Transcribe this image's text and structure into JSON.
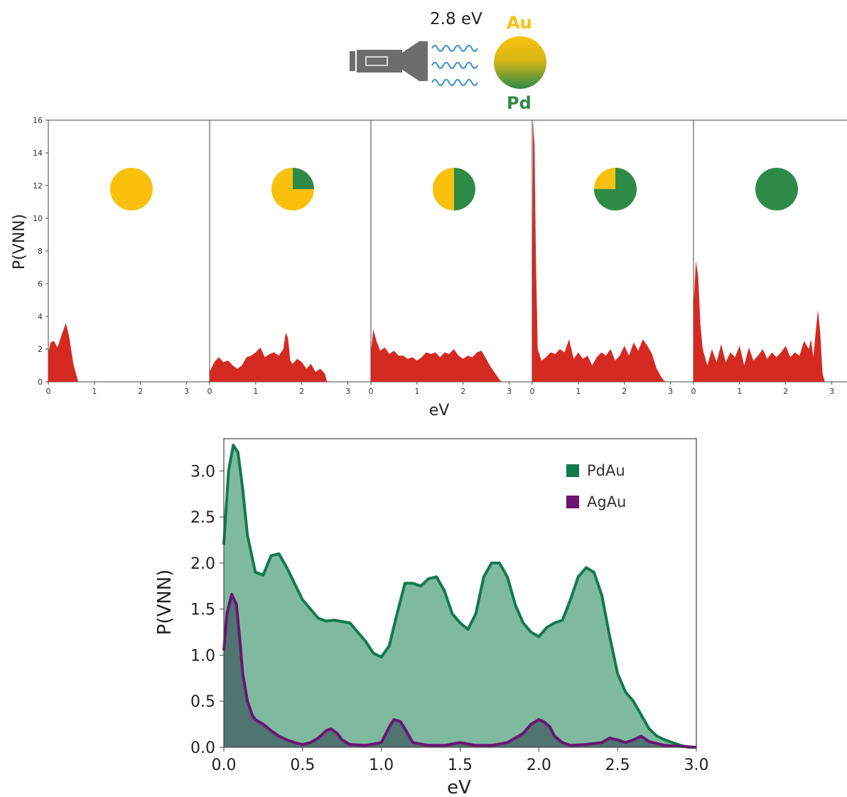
{
  "header": {
    "energy_label": "2.8 eV",
    "au_label": "Au",
    "pd_label": "Pd",
    "colors": {
      "au": "#f9c10e",
      "pd": "#2e8b47",
      "photon": "#3b8fd0",
      "torch": "#6d6d6d"
    }
  },
  "chart_data": [
    {
      "type": "area",
      "panels": 5,
      "ylabel": "P(VNN)",
      "xlabel": "eV",
      "xlim": [
        0,
        3.5
      ],
      "ylim": [
        0,
        16
      ],
      "xticks": [
        0,
        1,
        2,
        3
      ],
      "yticks": [
        0,
        2,
        4,
        6,
        8,
        10,
        12,
        14,
        16
      ],
      "pd_fraction": [
        0,
        0.25,
        0.5,
        0.75,
        1
      ],
      "color": "#d52a22",
      "series": [
        {
          "x": [
            0,
            0.05,
            0.12,
            0.2,
            0.28,
            0.38,
            0.45,
            0.55,
            0.65,
            3.4
          ],
          "y": [
            1.8,
            2.4,
            2.5,
            2.1,
            2.8,
            3.6,
            2.8,
            1.0,
            0,
            0
          ]
        },
        {
          "x": [
            0,
            0.1,
            0.2,
            0.3,
            0.4,
            0.5,
            0.6,
            0.7,
            0.8,
            0.9,
            1.0,
            1.1,
            1.2,
            1.3,
            1.4,
            1.5,
            1.6,
            1.65,
            1.7,
            1.75,
            1.8,
            1.9,
            2.0,
            2.1,
            2.2,
            2.3,
            2.4,
            2.5,
            2.55,
            3.4
          ],
          "y": [
            0.6,
            1.2,
            1.5,
            1.2,
            1.3,
            1.0,
            0.8,
            1.0,
            1.5,
            1.6,
            1.8,
            2.1,
            1.5,
            1.7,
            1.8,
            1.6,
            2.0,
            3.0,
            2.7,
            1.3,
            1.1,
            1.4,
            1.2,
            0.8,
            1.1,
            0.6,
            0.8,
            0.5,
            0,
            0
          ]
        },
        {
          "x": [
            0,
            0.05,
            0.12,
            0.2,
            0.3,
            0.4,
            0.5,
            0.6,
            0.7,
            0.8,
            0.9,
            1.0,
            1.1,
            1.2,
            1.3,
            1.4,
            1.5,
            1.6,
            1.7,
            1.8,
            1.9,
            2.0,
            2.1,
            2.2,
            2.3,
            2.4,
            2.5,
            2.6,
            2.7,
            2.8,
            2.85,
            3.4
          ],
          "y": [
            1.8,
            3.2,
            2.5,
            1.9,
            2.1,
            1.7,
            1.9,
            1.6,
            1.6,
            1.4,
            1.5,
            1.3,
            1.5,
            1.8,
            1.7,
            1.8,
            1.5,
            1.8,
            1.7,
            2.0,
            1.6,
            1.4,
            1.6,
            1.5,
            1.8,
            1.9,
            1.4,
            0.9,
            0.5,
            0.1,
            0,
            0
          ]
        },
        {
          "x": [
            0,
            0.02,
            0.05,
            0.08,
            0.12,
            0.2,
            0.3,
            0.4,
            0.5,
            0.6,
            0.7,
            0.8,
            0.9,
            1.0,
            1.1,
            1.2,
            1.3,
            1.4,
            1.5,
            1.6,
            1.7,
            1.8,
            1.9,
            2.0,
            2.1,
            2.2,
            2.3,
            2.4,
            2.5,
            2.6,
            2.7,
            2.8,
            2.85,
            2.9,
            3.4
          ],
          "y": [
            2.0,
            16,
            14.5,
            7.5,
            2.0,
            1.3,
            1.5,
            1.8,
            1.7,
            2.0,
            1.8,
            2.6,
            1.4,
            1.8,
            1.4,
            1.6,
            1.0,
            1.5,
            1.8,
            1.6,
            2.0,
            1.3,
            1.6,
            2.2,
            1.6,
            2.4,
            1.9,
            2.6,
            2.2,
            1.7,
            0.8,
            0.3,
            0.1,
            0,
            0
          ]
        },
        {
          "x": [
            0,
            0.05,
            0.1,
            0.15,
            0.2,
            0.25,
            0.3,
            0.4,
            0.5,
            0.6,
            0.7,
            0.8,
            0.9,
            1.0,
            1.1,
            1.2,
            1.3,
            1.4,
            1.5,
            1.6,
            1.7,
            1.8,
            1.9,
            2.0,
            2.1,
            2.2,
            2.3,
            2.4,
            2.5,
            2.55,
            2.6,
            2.65,
            2.7,
            2.75,
            2.8,
            2.85,
            3.4
          ],
          "y": [
            4.5,
            7.4,
            6.5,
            3.5,
            2.0,
            1.5,
            1.0,
            2.0,
            1.2,
            2.3,
            1.2,
            1.8,
            1.5,
            2.2,
            1.0,
            2.1,
            1.3,
            1.6,
            2.0,
            1.4,
            1.8,
            1.5,
            1.8,
            2.2,
            1.5,
            1.8,
            1.6,
            2.5,
            2.0,
            2.6,
            1.5,
            3.0,
            4.4,
            3.0,
            0.5,
            0,
            0
          ]
        }
      ]
    },
    {
      "type": "area",
      "ylabel": "P(VNN)",
      "xlabel": "eV",
      "xlim": [
        0,
        3.0
      ],
      "ylim": [
        0,
        3.35
      ],
      "xticks": [
        0.0,
        0.5,
        1.0,
        1.5,
        2.0,
        2.5,
        3.0
      ],
      "yticks": [
        0.0,
        0.5,
        1.0,
        1.5,
        2.0,
        2.5,
        3.0
      ],
      "legend_position": "top-right",
      "series": [
        {
          "name": "PdAu",
          "line": "#127a4d",
          "fill": "#7fbaa0",
          "x": [
            0,
            0.03,
            0.06,
            0.09,
            0.12,
            0.15,
            0.2,
            0.25,
            0.3,
            0.35,
            0.4,
            0.5,
            0.6,
            0.65,
            0.7,
            0.8,
            0.9,
            0.95,
            1.0,
            1.05,
            1.1,
            1.15,
            1.2,
            1.25,
            1.3,
            1.35,
            1.4,
            1.45,
            1.5,
            1.55,
            1.6,
            1.65,
            1.7,
            1.75,
            1.8,
            1.85,
            1.9,
            1.95,
            2.0,
            2.05,
            2.1,
            2.15,
            2.2,
            2.25,
            2.3,
            2.35,
            2.4,
            2.45,
            2.5,
            2.55,
            2.6,
            2.65,
            2.7,
            2.75,
            2.8,
            2.85,
            2.9,
            2.95,
            3.0
          ],
          "y": [
            2.2,
            3.0,
            3.28,
            3.2,
            2.8,
            2.3,
            1.9,
            1.87,
            2.08,
            2.1,
            1.95,
            1.6,
            1.4,
            1.37,
            1.38,
            1.35,
            1.15,
            1.02,
            0.98,
            1.1,
            1.45,
            1.78,
            1.78,
            1.75,
            1.83,
            1.85,
            1.7,
            1.45,
            1.35,
            1.28,
            1.45,
            1.85,
            2.0,
            2.0,
            1.85,
            1.55,
            1.35,
            1.25,
            1.2,
            1.3,
            1.35,
            1.38,
            1.6,
            1.85,
            1.95,
            1.9,
            1.65,
            1.2,
            0.8,
            0.6,
            0.5,
            0.35,
            0.2,
            0.12,
            0.08,
            0.05,
            0.02,
            0.0,
            0.0
          ]
        },
        {
          "name": "AgAu",
          "line": "#6b1472",
          "fill": "#4f7472",
          "x": [
            0,
            0.02,
            0.05,
            0.08,
            0.1,
            0.12,
            0.15,
            0.18,
            0.2,
            0.25,
            0.3,
            0.35,
            0.4,
            0.45,
            0.5,
            0.55,
            0.6,
            0.65,
            0.68,
            0.72,
            0.75,
            0.8,
            0.9,
            1.0,
            1.05,
            1.08,
            1.12,
            1.15,
            1.2,
            1.3,
            1.4,
            1.5,
            1.6,
            1.7,
            1.8,
            1.9,
            1.95,
            2.0,
            2.03,
            2.07,
            2.1,
            2.15,
            2.2,
            2.3,
            2.4,
            2.45,
            2.5,
            2.55,
            2.6,
            2.65,
            2.7,
            2.8,
            2.9,
            3.0
          ],
          "y": [
            1.05,
            1.45,
            1.66,
            1.55,
            1.2,
            0.8,
            0.5,
            0.35,
            0.3,
            0.25,
            0.18,
            0.12,
            0.08,
            0.05,
            0.03,
            0.05,
            0.1,
            0.18,
            0.2,
            0.15,
            0.08,
            0.03,
            0.02,
            0.05,
            0.22,
            0.3,
            0.28,
            0.2,
            0.05,
            0.02,
            0.02,
            0.05,
            0.02,
            0.02,
            0.05,
            0.15,
            0.25,
            0.3,
            0.28,
            0.22,
            0.12,
            0.05,
            0.02,
            0.03,
            0.05,
            0.1,
            0.08,
            0.05,
            0.08,
            0.12,
            0.06,
            0.02,
            0.01,
            0.0
          ]
        }
      ]
    }
  ]
}
